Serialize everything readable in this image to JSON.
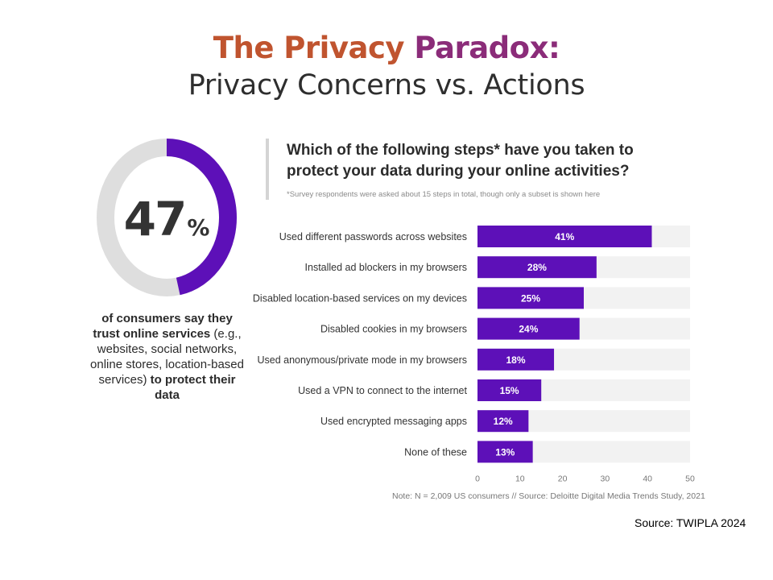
{
  "header": {
    "title_line1_a": "The Privacy ",
    "title_line1_b": "Paradox:",
    "title_line2": "Privacy Concerns vs. Actions"
  },
  "stat": {
    "value": 47,
    "value_text": "47",
    "sign": "%",
    "caption_1": "of consumers say they trust online services",
    "caption_2": " (e.g., websites, social networks, online stores, location-based services) ",
    "caption_3": "to protect their data",
    "colors": {
      "filled": "#5d10b8",
      "empty": "#dedede"
    }
  },
  "question": {
    "text": "Which of the following steps* have you taken to protect your data during your online activities?",
    "footnote": "*Survey respondents were asked about 15 steps in total, though only a subset is shown here"
  },
  "chart_data": {
    "type": "bar",
    "orientation": "horizontal",
    "categories": [
      "Used different passwords across websites",
      "Installed ad blockers in my browsers",
      "Disabled location-based services on my devices",
      "Disabled cookies in my browsers",
      "Used anonymous/private mode in my browsers",
      "Used a VPN to connect to the internet",
      "Used encrypted messaging apps",
      "None of these"
    ],
    "values": [
      41,
      28,
      25,
      24,
      18,
      15,
      12,
      13
    ],
    "data_labels": [
      "41%",
      "28%",
      "25%",
      "24%",
      "18%",
      "15%",
      "12%",
      "13%"
    ],
    "xlim": [
      0,
      50
    ],
    "xticks": [
      "0",
      "10",
      "20",
      "30",
      "40",
      "50"
    ],
    "bar_color": "#5d10b8",
    "track_color": "#f2f2f2",
    "grid": false
  },
  "footer": {
    "note": "Note: N = 2,009 US consumers // Source: Deloitte Digital Media Trends Study, 2021",
    "source": "Source: TWIPLA 2024"
  }
}
